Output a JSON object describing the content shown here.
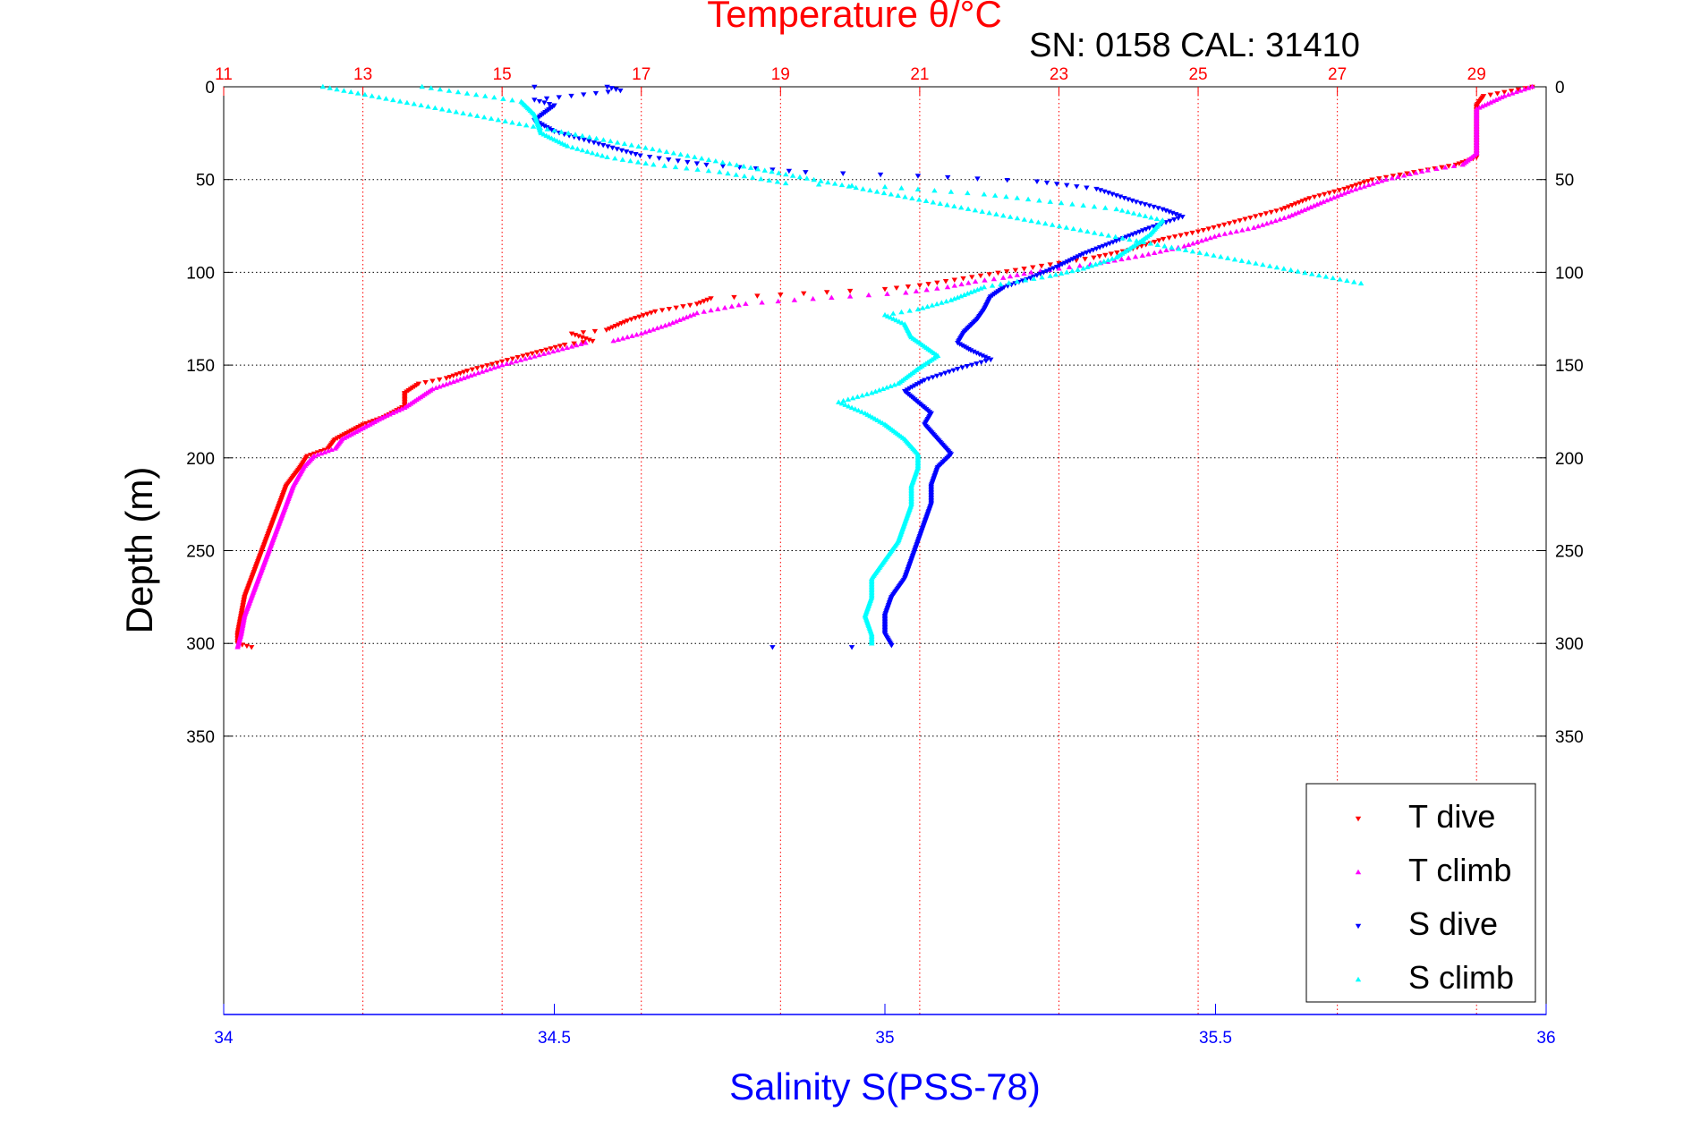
{
  "chart_data": {
    "type": "scatter",
    "title": "Temperature θ/°C",
    "subtitle": "SN: 0158  CAL: 31410",
    "ylabel": "Depth (m)",
    "xlabel": "Salinity S(PSS-78)",
    "top_axis": {
      "label": "Temperature θ/°C",
      "range": [
        11,
        30
      ],
      "ticks": [
        11,
        13,
        15,
        17,
        19,
        21,
        23,
        25,
        27,
        29
      ],
      "color": "#ff0000"
    },
    "bottom_axis": {
      "label": "Salinity S(PSS-78)",
      "range": [
        34,
        36
      ],
      "ticks": [
        34,
        34.5,
        35,
        35.5,
        36
      ],
      "color": "#0000ff"
    },
    "y_axis": {
      "range": [
        0,
        500
      ],
      "ticks": [
        0,
        50,
        100,
        150,
        200,
        250,
        300,
        350
      ],
      "inverted": true
    },
    "grid": true,
    "legend_position": "bottom-right",
    "series": [
      {
        "name": "T dive",
        "axis": "temperature",
        "color": "#ff0000",
        "marker": "triangle-down",
        "points": [
          [
            29.8,
            0
          ],
          [
            29.1,
            5
          ],
          [
            29.0,
            10
          ],
          [
            29.0,
            20
          ],
          [
            29.0,
            30
          ],
          [
            29.0,
            38
          ],
          [
            28.7,
            42
          ],
          [
            28.1,
            46
          ],
          [
            27.5,
            50
          ],
          [
            27.1,
            55
          ],
          [
            26.6,
            60
          ],
          [
            26.2,
            66
          ],
          [
            25.6,
            72
          ],
          [
            25.0,
            78
          ],
          [
            24.5,
            82
          ],
          [
            24.0,
            88
          ],
          [
            23.5,
            92
          ],
          [
            23.0,
            95
          ],
          [
            22.5,
            98
          ],
          [
            22.0,
            101
          ],
          [
            21.5,
            104
          ],
          [
            21.0,
            107
          ],
          [
            20.5,
            109
          ],
          [
            20.0,
            110
          ],
          [
            19.0,
            112
          ],
          [
            18.0,
            114
          ],
          [
            17.8,
            117
          ],
          [
            17.2,
            121
          ],
          [
            16.8,
            126
          ],
          [
            16.5,
            131
          ],
          [
            16.0,
            133
          ],
          [
            16.3,
            137
          ],
          [
            15.9,
            139
          ],
          [
            15.7,
            141
          ],
          [
            15.3,
            145
          ],
          [
            15.0,
            148
          ],
          [
            14.5,
            153
          ],
          [
            14.2,
            157
          ],
          [
            13.8,
            160
          ],
          [
            13.6,
            165
          ],
          [
            13.6,
            172
          ],
          [
            13.3,
            178
          ],
          [
            13.0,
            182
          ],
          [
            12.8,
            186
          ],
          [
            12.6,
            190
          ],
          [
            12.5,
            195
          ],
          [
            12.2,
            199
          ],
          [
            12.1,
            205
          ],
          [
            11.9,
            215
          ],
          [
            11.8,
            225
          ],
          [
            11.7,
            235
          ],
          [
            11.6,
            245
          ],
          [
            11.5,
            255
          ],
          [
            11.4,
            265
          ],
          [
            11.3,
            275
          ],
          [
            11.25,
            285
          ],
          [
            11.2,
            295
          ],
          [
            11.2,
            300
          ],
          [
            11.4,
            302
          ]
        ]
      },
      {
        "name": "T climb",
        "axis": "temperature",
        "color": "#ff00ff",
        "marker": "triangle-up",
        "points": [
          [
            11.2,
            302
          ],
          [
            11.25,
            295
          ],
          [
            11.3,
            285
          ],
          [
            11.4,
            275
          ],
          [
            11.5,
            265
          ],
          [
            11.6,
            255
          ],
          [
            11.7,
            245
          ],
          [
            11.8,
            235
          ],
          [
            11.9,
            225
          ],
          [
            12.0,
            215
          ],
          [
            12.15,
            205
          ],
          [
            12.3,
            199
          ],
          [
            12.6,
            195
          ],
          [
            12.7,
            190
          ],
          [
            12.9,
            186
          ],
          [
            13.1,
            182
          ],
          [
            13.3,
            178
          ],
          [
            13.6,
            173
          ],
          [
            13.8,
            168
          ],
          [
            14.0,
            163
          ],
          [
            14.3,
            159
          ],
          [
            14.6,
            155
          ],
          [
            15.0,
            150
          ],
          [
            15.4,
            146
          ],
          [
            15.8,
            142
          ],
          [
            16.2,
            138
          ],
          [
            16.6,
            137
          ],
          [
            17.0,
            133
          ],
          [
            17.4,
            128
          ],
          [
            17.8,
            122
          ],
          [
            18.5,
            117
          ],
          [
            19.2,
            115
          ],
          [
            20.0,
            113
          ],
          [
            20.8,
            111
          ],
          [
            21.4,
            108
          ],
          [
            21.8,
            105
          ],
          [
            22.2,
            103
          ],
          [
            22.6,
            100
          ],
          [
            23.0,
            98
          ],
          [
            23.6,
            95
          ],
          [
            24.2,
            91
          ],
          [
            24.8,
            86
          ],
          [
            25.3,
            80
          ],
          [
            25.8,
            76
          ],
          [
            26.3,
            70
          ],
          [
            26.8,
            62
          ],
          [
            27.2,
            56
          ],
          [
            27.7,
            50
          ],
          [
            28.3,
            45
          ],
          [
            28.8,
            42
          ],
          [
            29.0,
            36
          ],
          [
            29.0,
            25
          ],
          [
            29.0,
            12
          ],
          [
            29.4,
            5
          ],
          [
            29.8,
            0
          ]
        ]
      },
      {
        "name": "S dive",
        "axis": "salinity",
        "color": "#0000ff",
        "marker": "triangle-down",
        "points": [
          [
            34.47,
            0
          ],
          [
            34.58,
            0
          ],
          [
            34.6,
            2
          ],
          [
            34.47,
            7
          ],
          [
            34.5,
            10
          ],
          [
            34.47,
            18
          ],
          [
            34.5,
            24
          ],
          [
            34.56,
            30
          ],
          [
            34.63,
            37
          ],
          [
            34.73,
            42
          ],
          [
            34.88,
            46
          ],
          [
            35.05,
            48
          ],
          [
            35.23,
            51
          ],
          [
            35.32,
            55
          ],
          [
            35.38,
            62
          ],
          [
            35.42,
            66
          ],
          [
            35.45,
            70
          ],
          [
            35.4,
            76
          ],
          [
            35.35,
            83
          ],
          [
            35.3,
            90
          ],
          [
            35.26,
            97
          ],
          [
            35.22,
            103
          ],
          [
            35.18,
            108
          ],
          [
            35.16,
            113
          ],
          [
            35.15,
            120
          ],
          [
            35.14,
            125
          ],
          [
            35.12,
            132
          ],
          [
            35.11,
            138
          ],
          [
            35.13,
            142
          ],
          [
            35.16,
            147
          ],
          [
            35.11,
            152
          ],
          [
            35.06,
            158
          ],
          [
            35.03,
            164
          ],
          [
            35.05,
            170
          ],
          [
            35.07,
            176
          ],
          [
            35.06,
            182
          ],
          [
            35.08,
            190
          ],
          [
            35.1,
            198
          ],
          [
            35.08,
            205
          ],
          [
            35.07,
            215
          ],
          [
            35.07,
            225
          ],
          [
            35.06,
            235
          ],
          [
            35.05,
            245
          ],
          [
            35.04,
            255
          ],
          [
            35.03,
            265
          ],
          [
            35.01,
            275
          ],
          [
            35.0,
            285
          ],
          [
            35.0,
            295
          ],
          [
            35.01,
            301
          ],
          [
            34.95,
            302
          ],
          [
            34.83,
            302
          ]
        ]
      },
      {
        "name": "S climb",
        "axis": "salinity",
        "color": "#00ffff",
        "marker": "triangle-up",
        "points": [
          [
            34.98,
            300
          ],
          [
            34.98,
            295
          ],
          [
            34.97,
            285
          ],
          [
            34.98,
            275
          ],
          [
            34.98,
            265
          ],
          [
            35.0,
            255
          ],
          [
            35.02,
            245
          ],
          [
            35.03,
            235
          ],
          [
            35.04,
            225
          ],
          [
            35.04,
            215
          ],
          [
            35.05,
            205
          ],
          [
            35.05,
            198
          ],
          [
            35.03,
            190
          ],
          [
            35.0,
            182
          ],
          [
            34.97,
            176
          ],
          [
            34.93,
            170
          ],
          [
            34.98,
            165
          ],
          [
            35.02,
            160
          ],
          [
            35.05,
            152
          ],
          [
            35.08,
            145
          ],
          [
            35.06,
            140
          ],
          [
            35.04,
            135
          ],
          [
            35.03,
            128
          ],
          [
            35.0,
            123
          ],
          [
            35.05,
            120
          ],
          [
            35.1,
            115
          ],
          [
            35.15,
            108
          ],
          [
            35.25,
            102
          ],
          [
            35.3,
            98
          ],
          [
            35.35,
            92
          ],
          [
            35.38,
            85
          ],
          [
            35.4,
            80
          ],
          [
            35.42,
            72
          ],
          [
            35.35,
            66
          ],
          [
            35.25,
            62
          ],
          [
            35.15,
            58
          ],
          [
            35.0,
            54
          ],
          [
            34.85,
            52
          ],
          [
            34.75,
            46
          ],
          [
            34.65,
            42
          ],
          [
            34.58,
            38
          ],
          [
            34.52,
            32
          ],
          [
            34.48,
            25
          ],
          [
            34.47,
            15
          ],
          [
            34.45,
            8
          ],
          [
            34.3,
            0
          ],
          [
            34.15,
            0
          ],
          [
            35.72,
            106
          ]
        ]
      }
    ]
  }
}
